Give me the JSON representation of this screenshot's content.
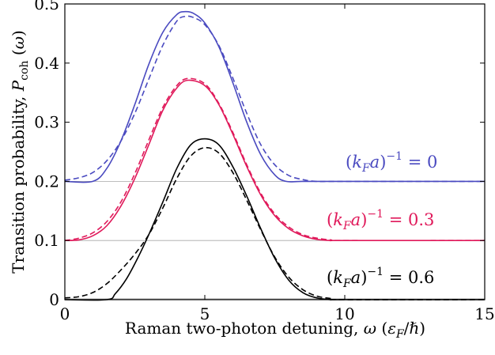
{
  "chart_data": {
    "type": "line",
    "xlabel": "Raman two-photon detuning, ω (ε_F/ℏ)",
    "ylabel": "Transition probability, P_coh (ω)",
    "xlim": [
      0,
      15
    ],
    "ylim": [
      0,
      0.5
    ],
    "xticks": [
      "0",
      "5",
      "10",
      "15"
    ],
    "yticks": [
      "0",
      "0.1",
      "0.2",
      "0.3",
      "0.4",
      "0.5"
    ],
    "grid": "horizontal lines at 0.1 and 0.2",
    "series": [
      {
        "name": "(k_F a)^{-1} = 0",
        "color": "#4a4ac0",
        "solid": {
          "x": [
            0,
            1.0,
            1.5,
            2,
            2.5,
            3,
            3.5,
            4,
            4.3,
            4.6,
            5,
            5.5,
            6,
            6.5,
            7,
            7.5,
            7.9,
            8.5,
            10,
            15
          ],
          "y": [
            0.2,
            0.2,
            0.222,
            0.268,
            0.33,
            0.398,
            0.452,
            0.482,
            0.487,
            0.484,
            0.468,
            0.428,
            0.367,
            0.3,
            0.245,
            0.211,
            0.2,
            0.2,
            0.2,
            0.2
          ]
        },
        "dashed": {
          "x": [
            0,
            0.5,
            1,
            1.5,
            2,
            2.5,
            3,
            3.5,
            4,
            4.3,
            4.6,
            5,
            5.5,
            6,
            6.5,
            7,
            7.5,
            8,
            8.5,
            9,
            10,
            15
          ],
          "y": [
            0.202,
            0.206,
            0.215,
            0.235,
            0.268,
            0.315,
            0.373,
            0.43,
            0.471,
            0.479,
            0.477,
            0.465,
            0.43,
            0.375,
            0.315,
            0.262,
            0.228,
            0.21,
            0.203,
            0.2,
            0.2,
            0.2
          ]
        }
      },
      {
        "name": "(k_F a)^{-1} = 0.3",
        "color": "#e0195a",
        "solid": {
          "x": [
            0,
            0.5,
            1,
            1.5,
            2,
            2.5,
            3,
            3.5,
            4,
            4.4,
            5,
            5.5,
            6,
            6.5,
            7,
            7.5,
            8,
            8.5,
            9,
            9.5,
            10,
            15
          ],
          "y": [
            0.1,
            0.101,
            0.108,
            0.125,
            0.158,
            0.205,
            0.262,
            0.32,
            0.358,
            0.371,
            0.362,
            0.33,
            0.28,
            0.225,
            0.177,
            0.142,
            0.12,
            0.108,
            0.102,
            0.1,
            0.1,
            0.1
          ]
        },
        "dashed": {
          "x": [
            0,
            0.5,
            1,
            1.5,
            2,
            2.5,
            3,
            3.5,
            4,
            4.4,
            5,
            5.5,
            6,
            6.5,
            7,
            7.5,
            8,
            8.5,
            9,
            9.5,
            10,
            15
          ],
          "y": [
            0.1,
            0.104,
            0.113,
            0.132,
            0.165,
            0.213,
            0.27,
            0.325,
            0.362,
            0.374,
            0.365,
            0.332,
            0.283,
            0.228,
            0.18,
            0.145,
            0.123,
            0.11,
            0.104,
            0.101,
            0.1,
            0.1
          ]
        }
      },
      {
        "name": "(k_F a)^{-1} = 0.6",
        "color": "#000000",
        "solid": {
          "x": [
            0,
            1.5,
            1.8,
            2.2,
            2.6,
            3,
            3.5,
            4,
            4.5,
            5,
            5.5,
            6,
            6.5,
            7,
            7.5,
            8,
            8.5,
            9,
            9.5,
            10,
            15
          ],
          "y": [
            0.0,
            0.0,
            0.01,
            0.035,
            0.07,
            0.11,
            0.165,
            0.222,
            0.262,
            0.272,
            0.262,
            0.225,
            0.175,
            0.12,
            0.07,
            0.033,
            0.012,
            0.003,
            0.0,
            0.0,
            0.0
          ]
        },
        "dashed": {
          "x": [
            0,
            0.5,
            1,
            1.5,
            2,
            2.5,
            3,
            3.5,
            4,
            4.5,
            5,
            5.5,
            6,
            6.5,
            7,
            7.5,
            8,
            8.5,
            9,
            9.5,
            10,
            15
          ],
          "y": [
            0.003,
            0.005,
            0.012,
            0.027,
            0.05,
            0.077,
            0.11,
            0.155,
            0.205,
            0.243,
            0.257,
            0.248,
            0.215,
            0.168,
            0.118,
            0.072,
            0.038,
            0.017,
            0.006,
            0.002,
            0.0,
            0.0
          ]
        }
      }
    ],
    "annotations": [
      {
        "text": "(k_F a)^{-1} = 0",
        "color": "#4a4ac0"
      },
      {
        "text": "(k_F a)^{-1} = 0.3",
        "color": "#e0195a"
      },
      {
        "text": "(k_F a)^{-1} = 0.6",
        "color": "#000000"
      }
    ]
  }
}
